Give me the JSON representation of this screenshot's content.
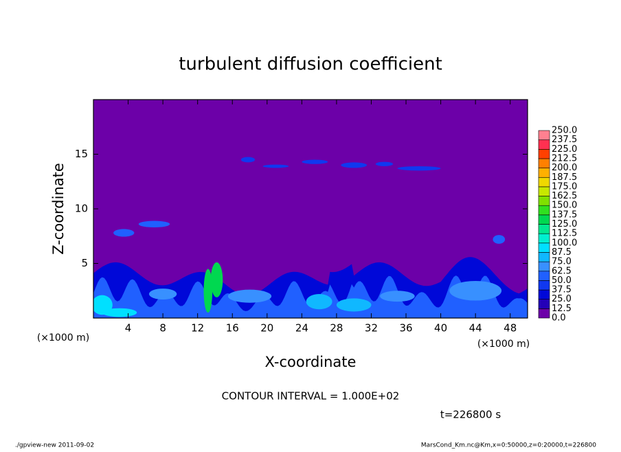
{
  "chart_data": {
    "type": "contour",
    "title": "turbulent diffusion coefficient",
    "xlabel": "X-coordinate",
    "ylabel": "Z-coordinate",
    "xunit_label": "(×1000 m)",
    "yunit_label": "(×1000 m)",
    "xlim": [
      0,
      50
    ],
    "ylim": [
      0,
      20
    ],
    "xticks": [
      4,
      8,
      12,
      16,
      20,
      24,
      28,
      32,
      36,
      40,
      44,
      48
    ],
    "yticks": [
      5,
      10,
      15
    ],
    "colorbar": {
      "ticks": [
        {
          "value": 0,
          "label": "0.0"
        },
        12.5,
        {
          "value": 25,
          "label": "25.0"
        },
        37.5,
        {
          "value": 50,
          "label": "50.0"
        },
        62.5,
        {
          "value": 75,
          "label": "75.0"
        },
        87.5,
        {
          "value": 100,
          "label": "100.0"
        },
        112.5,
        {
          "value": 125,
          "label": "125.0"
        },
        137.5,
        {
          "value": 150,
          "label": "150.0"
        },
        162.5,
        {
          "value": 175,
          "label": "175.0"
        },
        187.5,
        {
          "value": 200,
          "label": "200.0"
        },
        212.5,
        {
          "value": 225,
          "label": "225.0"
        },
        237.5,
        {
          "value": 250,
          "label": "250.0"
        }
      ],
      "colors": [
        "#6c00a8",
        "#2400b8",
        "#0008d8",
        "#1038f0",
        "#2060ff",
        "#3890ff",
        "#10b8ff",
        "#00e0ff",
        "#00f0d0",
        "#00e890",
        "#00d850",
        "#30e020",
        "#80e000",
        "#c8e800",
        "#f0d800",
        "#ffb000",
        "#ff8000",
        "#ff4000",
        "#ff3050",
        "#ff8090"
      ]
    },
    "annotations": {
      "contour_interval": "CONTOUR INTERVAL = 1.000E+02",
      "time": "t=226800 s",
      "footer_left": "./gpview-new  2011-09-02",
      "footer_right": "MarsCond_Km.nc@Km,x=0:50000,z=0:20000,t=226800"
    }
  }
}
